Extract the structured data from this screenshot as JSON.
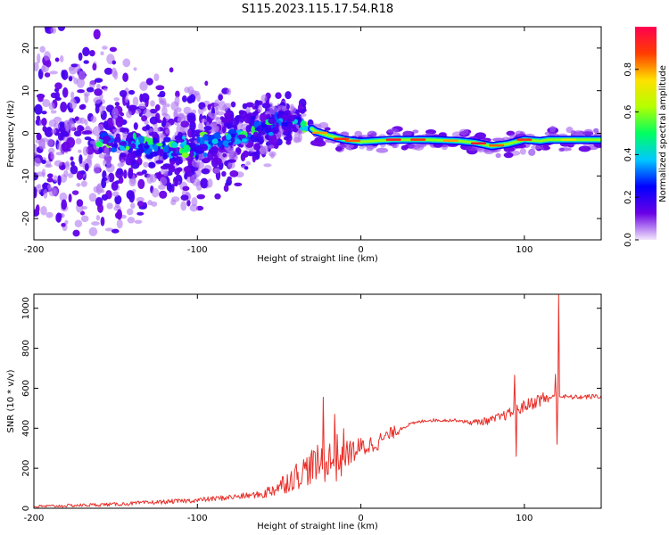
{
  "title": "S115.2023.115.17.54.R18",
  "chart_data": [
    {
      "type": "heatmap",
      "title": "S115.2023.115.17.54.R18",
      "xlabel": "Height of straight line (km)",
      "ylabel": "Frequency (Hz)",
      "xlim": [
        -200,
        147
      ],
      "ylim": [
        -25,
        25
      ],
      "x_ticks": [
        -200,
        -100,
        0,
        100
      ],
      "y_ticks": [
        -20,
        -10,
        0,
        10,
        20
      ],
      "ridge": {
        "x": [
          -155,
          -140,
          -120,
          -100,
          -80,
          -60,
          -45,
          -35,
          -28,
          -20,
          -10,
          0,
          20,
          40,
          60,
          70,
          80,
          90,
          100,
          110,
          115,
          130,
          147
        ],
        "y": [
          -2,
          -3,
          -3.5,
          -3,
          -1,
          1,
          3.5,
          2.5,
          0.5,
          -0.5,
          -1.5,
          -2,
          -1.5,
          -1.5,
          -1.8,
          -2.2,
          -3,
          -2.5,
          -1.5,
          -1.8,
          -1.5,
          -1.5,
          -1.5
        ]
      },
      "colorbar": {
        "label": "Normalized spectral amplitude",
        "range": [
          0,
          1
        ],
        "ticks": [
          "0.0",
          "0.2",
          "0.4",
          "0.6",
          "0.8"
        ],
        "colors": [
          "#f2e6fb",
          "#6a00e6",
          "#0000ff",
          "#00c8ff",
          "#00ff60",
          "#b4ff00",
          "#ffe000",
          "#ff3c00",
          "#ff0050"
        ]
      }
    },
    {
      "type": "line",
      "xlabel": "Height of straight line (km)",
      "ylabel": "SNR (10 * v/v)",
      "xlim": [
        -200,
        147
      ],
      "ylim": [
        0,
        1070
      ],
      "x_ticks": [
        -200,
        -100,
        0,
        100
      ],
      "y_ticks": [
        0,
        200,
        400,
        600,
        800,
        1000
      ],
      "color": "#e8302a",
      "trend": {
        "x": [
          -200,
          -150,
          -100,
          -80,
          -60,
          -50,
          -40,
          -30,
          -20,
          -10,
          0,
          10,
          20,
          30,
          40,
          50,
          60,
          65,
          70,
          80,
          90,
          100,
          110,
          120,
          130,
          147
        ],
        "y": [
          8,
          20,
          40,
          55,
          70,
          110,
          160,
          210,
          230,
          270,
          300,
          330,
          380,
          420,
          440,
          440,
          440,
          430,
          430,
          440,
          470,
          510,
          545,
          560,
          555,
          560
        ]
      },
      "spikes": [
        {
          "x": -23,
          "y": 555
        },
        {
          "x": -20,
          "y": 170
        },
        {
          "x": -16,
          "y": 470
        },
        {
          "x": 94,
          "y": 665
        },
        {
          "x": 95,
          "y": 260
        },
        {
          "x": 119,
          "y": 670
        },
        {
          "x": 120,
          "y": 320
        },
        {
          "x": 121,
          "y": 1070
        }
      ]
    }
  ]
}
